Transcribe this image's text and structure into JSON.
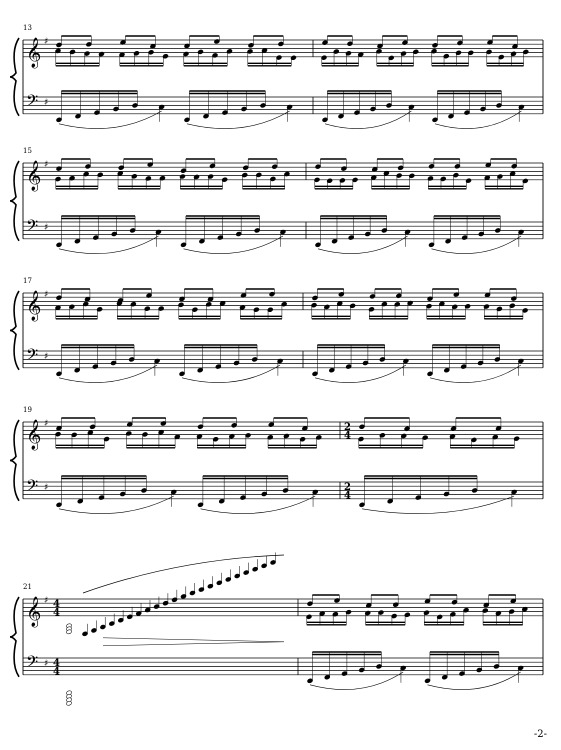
{
  "page": {
    "number": "-2-"
  },
  "systems": [
    {
      "measure_number": "13",
      "barlines": [
        23,
        313,
        543
      ],
      "key": "G",
      "time": null,
      "treble_time": null,
      "bass_time": null
    },
    {
      "measure_number": "15",
      "barlines": null,
      "key": "G",
      "time": null
    },
    {
      "measure_number": "17",
      "barlines": null,
      "key": "G",
      "time": null
    },
    {
      "measure_number": "19",
      "barlines": null,
      "key": "G",
      "time_change": {
        "top": "2",
        "bottom": "4"
      }
    },
    {
      "measure_number": "21",
      "barlines": null,
      "key": "G",
      "time_start": {
        "top": "4",
        "bottom": "4"
      }
    }
  ]
}
